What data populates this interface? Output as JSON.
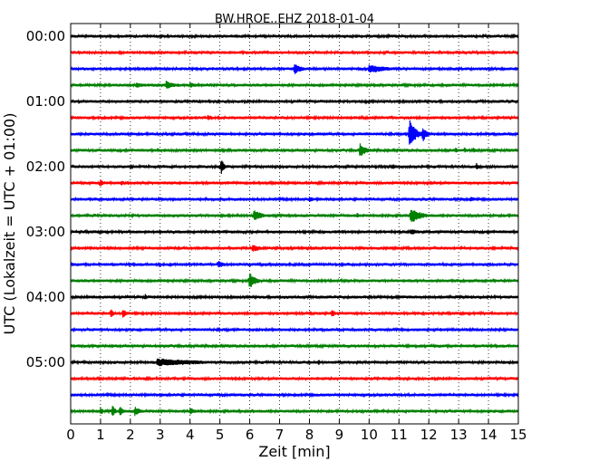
{
  "chart_data": {
    "type": "line",
    "title": "BW.HROE..EHZ 2018-01-04",
    "xlabel": "Zeit  [min]",
    "ylabel": "UTC (Lokalzeit = UTC + 01:00)",
    "xlim": [
      0,
      15
    ],
    "x_ticks": [
      "0",
      "1",
      "2",
      "3",
      "4",
      "5",
      "6",
      "7",
      "8",
      "9",
      "10",
      "11",
      "12",
      "13",
      "14",
      "15"
    ],
    "y_ticks": [
      "00:00",
      "01:00",
      "02:00",
      "03:00",
      "04:00",
      "05:00"
    ],
    "grid": "vertical-dotted",
    "row_minutes": 15,
    "row_count": 24,
    "colors": [
      "#000000",
      "#ff0000",
      "#0000ff",
      "#008000"
    ],
    "events": [
      {
        "row": 2,
        "t": 7.5,
        "amp": 0.35,
        "dur": 0.25
      },
      {
        "row": 2,
        "t": 10.0,
        "amp": 0.3,
        "dur": 0.6
      },
      {
        "row": 3,
        "t": 2.2,
        "amp": 0.2,
        "dur": 0.3
      },
      {
        "row": 3,
        "t": 3.2,
        "amp": 0.28,
        "dur": 0.3
      },
      {
        "row": 3,
        "t": 4.0,
        "amp": 0.18,
        "dur": 0.3
      },
      {
        "row": 5,
        "t": 4.6,
        "amp": 0.2,
        "dur": 0.1
      },
      {
        "row": 6,
        "t": 11.35,
        "amp": 0.95,
        "dur": 0.2
      },
      {
        "row": 6,
        "t": 11.8,
        "amp": 0.5,
        "dur": 0.15
      },
      {
        "row": 7,
        "t": 9.7,
        "amp": 0.5,
        "dur": 0.2
      },
      {
        "row": 7,
        "t": 12.9,
        "amp": 0.2,
        "dur": 0.1
      },
      {
        "row": 7,
        "t": 13.2,
        "amp": 0.18,
        "dur": 0.1
      },
      {
        "row": 7,
        "t": 13.5,
        "amp": 0.18,
        "dur": 0.1
      },
      {
        "row": 8,
        "t": 5.05,
        "amp": 0.6,
        "dur": 0.08
      },
      {
        "row": 8,
        "t": 10.8,
        "amp": 0.2,
        "dur": 0.1
      },
      {
        "row": 8,
        "t": 13.6,
        "amp": 0.25,
        "dur": 0.1
      },
      {
        "row": 9,
        "t": 1.0,
        "amp": 0.25,
        "dur": 0.1
      },
      {
        "row": 9,
        "t": 1.7,
        "amp": 0.18,
        "dur": 0.1
      },
      {
        "row": 10,
        "t": 8.0,
        "amp": 0.18,
        "dur": 0.2
      },
      {
        "row": 10,
        "t": 13.4,
        "amp": 0.2,
        "dur": 0.2
      },
      {
        "row": 11,
        "t": 6.15,
        "amp": 0.4,
        "dur": 0.25
      },
      {
        "row": 11,
        "t": 9.6,
        "amp": 0.2,
        "dur": 0.08
      },
      {
        "row": 11,
        "t": 11.4,
        "amp": 0.5,
        "dur": 0.35
      },
      {
        "row": 12,
        "t": 11.4,
        "amp": 0.2,
        "dur": 0.3
      },
      {
        "row": 13,
        "t": 6.1,
        "amp": 0.25,
        "dur": 0.3
      },
      {
        "row": 14,
        "t": 4.95,
        "amp": 0.25,
        "dur": 0.25
      },
      {
        "row": 15,
        "t": 6.0,
        "amp": 0.55,
        "dur": 0.2
      },
      {
        "row": 16,
        "t": 2.5,
        "amp": 0.2,
        "dur": 0.1
      },
      {
        "row": 17,
        "t": 1.35,
        "amp": 0.28,
        "dur": 0.12
      },
      {
        "row": 17,
        "t": 1.75,
        "amp": 0.32,
        "dur": 0.12
      },
      {
        "row": 17,
        "t": 8.75,
        "amp": 0.28,
        "dur": 0.12
      },
      {
        "row": 20,
        "t": 2.9,
        "amp": 0.25,
        "dur": 1.8
      },
      {
        "row": 20,
        "t": 8.3,
        "amp": 0.2,
        "dur": 0.1
      },
      {
        "row": 23,
        "t": 1.0,
        "amp": 0.28,
        "dur": 0.1
      },
      {
        "row": 23,
        "t": 1.4,
        "amp": 0.38,
        "dur": 0.12
      },
      {
        "row": 23,
        "t": 1.65,
        "amp": 0.32,
        "dur": 0.12
      },
      {
        "row": 23,
        "t": 2.15,
        "amp": 0.3,
        "dur": 0.2
      },
      {
        "row": 23,
        "t": 4.0,
        "amp": 0.22,
        "dur": 0.2
      }
    ]
  }
}
